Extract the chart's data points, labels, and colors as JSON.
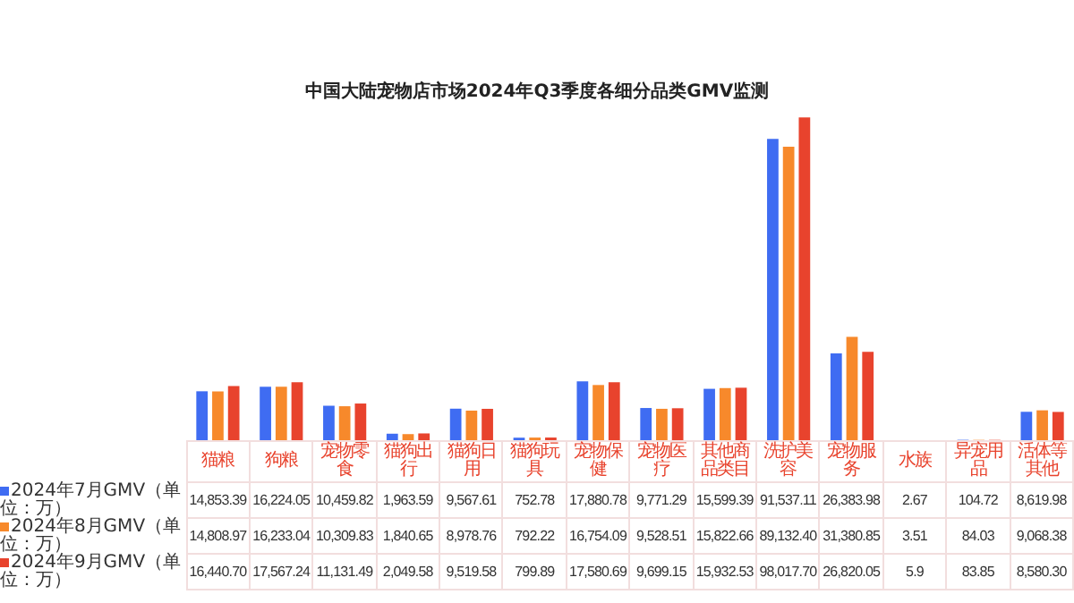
{
  "chart_data": {
    "type": "bar",
    "title": "中国大陆宠物店市场2024年Q3季度各细分品类GMV监测",
    "categories": [
      "猫粮",
      "狗粮",
      "宠物零食",
      "猫狗出行",
      "猫狗日用",
      "猫狗玩具",
      "宠物保健",
      "宠物医疗",
      "其他商品类目",
      "洗护美容",
      "宠物服务",
      "水族",
      "异宠用品",
      "活体等其他"
    ],
    "series": [
      {
        "name": "2024年7月GMV（单位：万）",
        "color": "#3f6cf2",
        "values": [
          14853.39,
          16224.05,
          10459.82,
          1963.59,
          9567.61,
          752.78,
          17880.78,
          9771.29,
          15599.39,
          91537.11,
          26383.98,
          2.67,
          104.72,
          8619.98
        ],
        "value_labels": [
          "14,853.39",
          "16,224.05",
          "10,459.82",
          "1,963.59",
          "9,567.61",
          "752.78",
          "17,880.78",
          "9,771.29",
          "15,599.39",
          "91,537.11",
          "26,383.98",
          "2.67",
          "104.72",
          "8,619.98"
        ]
      },
      {
        "name": "2024年8月GMV（单位：万）",
        "color": "#f7892b",
        "values": [
          14808.97,
          16233.04,
          10309.83,
          1840.65,
          8978.76,
          792.22,
          16754.09,
          9528.51,
          15822.66,
          89132.4,
          31380.85,
          3.51,
          84.03,
          9068.38
        ],
        "value_labels": [
          "14,808.97",
          "16,233.04",
          "10,309.83",
          "1,840.65",
          "8,978.76",
          "792.22",
          "16,754.09",
          "9,528.51",
          "15,822.66",
          "89,132.40",
          "31,380.85",
          "3.51",
          "84.03",
          "9,068.38"
        ]
      },
      {
        "name": "2024年9月GMV（单位：万）",
        "color": "#e8432d",
        "values": [
          16440.7,
          17567.24,
          11131.49,
          2049.58,
          9519.58,
          799.89,
          17580.69,
          9699.15,
          15932.53,
          98017.7,
          26820.05,
          5.9,
          83.85,
          8580.3
        ],
        "value_labels": [
          "16,440.70",
          "17,567.24",
          "11,131.49",
          "2,049.58",
          "9,519.58",
          "799.89",
          "17,580.69",
          "9,699.15",
          "15,932.53",
          "98,017.70",
          "26,820.05",
          "5.9",
          "83.85",
          "8,580.30"
        ]
      }
    ],
    "legend": "bottom",
    "data_labels": true
  }
}
